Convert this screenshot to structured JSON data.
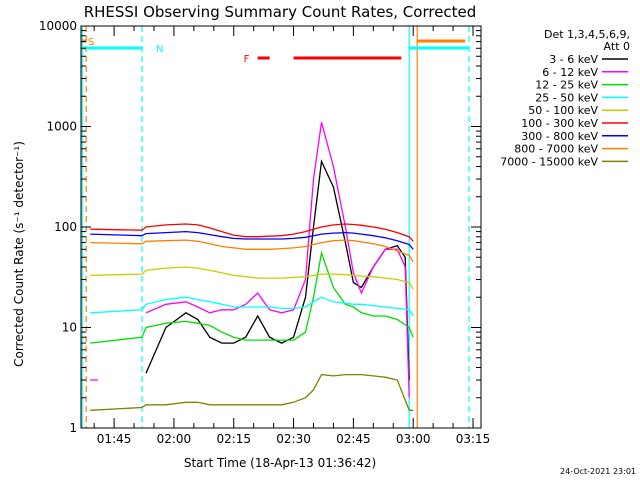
{
  "chart_data": {
    "type": "line",
    "title": "RHESSI Observing Summary Count Rates, Corrected",
    "xlabel": "Start Time (18-Apr-13 01:36:42)",
    "ylabel": "Corrected Count Rate (s⁻¹ detector⁻¹)",
    "y_scale": "log",
    "ylim": [
      1,
      10000
    ],
    "xlim": [
      "01:36:42",
      "03:17:00"
    ],
    "x_tick_labels": [
      "01:45",
      "02:00",
      "02:15",
      "02:30",
      "02:45",
      "03:00",
      "03:15"
    ],
    "y_tick_labels": [
      "1",
      "10",
      "100",
      "1000",
      "10000"
    ],
    "legend": {
      "placement": "top-right",
      "header": [
        "Det 1,3,4,5,6,9,",
        "Att 0"
      ],
      "entries": [
        {
          "label": "3 - 6 keV",
          "color": "#000000"
        },
        {
          "label": "6 - 12 keV",
          "color": "#ff00ff"
        },
        {
          "label": "12 - 25 keV",
          "color": "#00dd00"
        },
        {
          "label": "25 - 50 keV",
          "color": "#00ffff"
        },
        {
          "label": "50 - 100 keV",
          "color": "#cccc00"
        },
        {
          "label": "100 - 300 keV",
          "color": "#ff0000"
        },
        {
          "label": "300 - 800 keV",
          "color": "#0000ff"
        },
        {
          "label": "800 - 7000 keV",
          "color": "#ff7f00"
        },
        {
          "label": "7000 - 15000 keV",
          "color": "#808000"
        }
      ]
    },
    "flags": [
      {
        "letter": "S",
        "color": "#ff7f00",
        "segments": [
          [
            "01:37",
            "01:38"
          ],
          [
            "03:01",
            "03:13"
          ]
        ]
      },
      {
        "letter": "N",
        "color": "#00ffff",
        "segments": [
          [
            "01:37",
            "01:52"
          ],
          [
            "02:59",
            "03:14"
          ]
        ]
      },
      {
        "letter": "F",
        "color": "#ff0000",
        "segments": [
          [
            "02:21",
            "02:24"
          ],
          [
            "02:30",
            "02:57"
          ]
        ]
      }
    ],
    "markers": [
      {
        "color": "#00ffff",
        "style": "solid",
        "time": "01:37"
      },
      {
        "color": "#ff7f00",
        "style": "dashed",
        "time": "01:38"
      },
      {
        "color": "#00ffff",
        "style": "dashed",
        "time": "01:52"
      },
      {
        "color": "#00ffff",
        "style": "solid",
        "time": "02:59"
      },
      {
        "color": "#ff7f00",
        "style": "solid",
        "time": "03:01"
      },
      {
        "color": "#00ffff",
        "style": "dashed",
        "time": "03:14"
      }
    ],
    "series": [
      {
        "name": "3 - 6 keV",
        "color": "#000000",
        "x": [
          "01:39",
          "01:52",
          "01:53",
          "01:58",
          "02:03",
          "02:06",
          "02:09",
          "02:12",
          "02:15",
          "02:18",
          "02:21",
          "02:24",
          "02:27",
          "02:30",
          "02:33",
          "02:35",
          "02:37",
          "02:40",
          "02:43",
          "02:45",
          "02:47",
          "02:50",
          "02:53",
          "02:56",
          "02:58",
          "02:59"
        ],
        "values": [
          null,
          null,
          3.5,
          10,
          14,
          12,
          8,
          7,
          7,
          8,
          13,
          8,
          7,
          8,
          20,
          100,
          450,
          250,
          70,
          28,
          25,
          40,
          60,
          65,
          50,
          3
        ]
      },
      {
        "name": "6 - 12 keV",
        "color": "#ff00ff",
        "x": [
          "01:39",
          "01:41",
          "01:42",
          "01:52",
          "01:53",
          "01:58",
          "02:03",
          "02:06",
          "02:09",
          "02:12",
          "02:15",
          "02:18",
          "02:21",
          "02:24",
          "02:27",
          "02:30",
          "02:33",
          "02:35",
          "02:37",
          "02:40",
          "02:43",
          "02:45",
          "02:47",
          "02:50",
          "02:53",
          "02:56",
          "02:58",
          "02:59"
        ],
        "values": [
          3,
          3,
          null,
          null,
          14,
          17,
          18,
          16,
          14,
          15,
          15,
          17,
          22,
          15,
          14,
          15,
          30,
          300,
          1100,
          400,
          100,
          35,
          22,
          40,
          60,
          60,
          40,
          2
        ]
      },
      {
        "name": "12 - 25 keV",
        "color": "#00dd00",
        "x": [
          "01:39",
          "01:52",
          "01:53",
          "01:58",
          "02:03",
          "02:06",
          "02:09",
          "02:12",
          "02:15",
          "02:18",
          "02:21",
          "02:24",
          "02:27",
          "02:30",
          "02:33",
          "02:35",
          "02:37",
          "02:40",
          "02:43",
          "02:45",
          "02:47",
          "02:50",
          "02:53",
          "02:56",
          "02:59",
          "03:00"
        ],
        "values": [
          7,
          8,
          10,
          11,
          11.5,
          11,
          10.5,
          9,
          8,
          7.5,
          7.5,
          7.5,
          7.5,
          7.5,
          9,
          20,
          55,
          25,
          17,
          16,
          14,
          13,
          13,
          12,
          10,
          8
        ]
      },
      {
        "name": "25 - 50 keV",
        "color": "#00ffff",
        "x": [
          "01:39",
          "01:52",
          "01:53",
          "01:58",
          "02:03",
          "02:06",
          "02:09",
          "02:12",
          "02:15",
          "02:18",
          "02:21",
          "02:24",
          "02:27",
          "02:30",
          "02:33",
          "02:35",
          "02:37",
          "02:40",
          "02:43",
          "02:45",
          "02:47",
          "02:50",
          "02:53",
          "02:56",
          "02:59",
          "03:00"
        ],
        "values": [
          14,
          15,
          17,
          19,
          20,
          19,
          18,
          17,
          16,
          16,
          16,
          16,
          15.5,
          15.5,
          16,
          18,
          20,
          18,
          17.5,
          17,
          17,
          16.5,
          16,
          15.5,
          15,
          13
        ]
      },
      {
        "name": "50 - 100 keV",
        "color": "#cccc00",
        "x": [
          "01:39",
          "01:52",
          "01:53",
          "01:58",
          "02:03",
          "02:06",
          "02:09",
          "02:12",
          "02:15",
          "02:18",
          "02:21",
          "02:24",
          "02:27",
          "02:30",
          "02:33",
          "02:35",
          "02:37",
          "02:40",
          "02:43",
          "02:45",
          "02:47",
          "02:50",
          "02:53",
          "02:56",
          "02:59",
          "03:00"
        ],
        "values": [
          33,
          34,
          37,
          39,
          40,
          39,
          37,
          35,
          33,
          32,
          31,
          31,
          31,
          31.5,
          32,
          33,
          34,
          34,
          33.5,
          33,
          32.5,
          32,
          31,
          30,
          28,
          24
        ]
      },
      {
        "name": "100 - 300 keV",
        "color": "#ff0000",
        "x": [
          "01:39",
          "01:52",
          "01:53",
          "01:58",
          "02:03",
          "02:06",
          "02:09",
          "02:12",
          "02:15",
          "02:18",
          "02:21",
          "02:24",
          "02:27",
          "02:30",
          "02:33",
          "02:35",
          "02:37",
          "02:40",
          "02:43",
          "02:45",
          "02:47",
          "02:50",
          "02:53",
          "02:56",
          "02:59",
          "03:00"
        ],
        "values": [
          95,
          93,
          100,
          105,
          107,
          105,
          98,
          90,
          83,
          80,
          80,
          81,
          82,
          85,
          90,
          95,
          100,
          105,
          107,
          106,
          104,
          100,
          95,
          88,
          80,
          72
        ]
      },
      {
        "name": "300 - 800 keV",
        "color": "#0000ff",
        "x": [
          "01:39",
          "01:52",
          "01:53",
          "01:58",
          "02:03",
          "02:06",
          "02:09",
          "02:12",
          "02:15",
          "02:18",
          "02:21",
          "02:24",
          "02:27",
          "02:30",
          "02:33",
          "02:35",
          "02:37",
          "02:40",
          "02:43",
          "02:45",
          "02:47",
          "02:50",
          "02:53",
          "02:56",
          "02:59",
          "03:00"
        ],
        "values": [
          85,
          82,
          86,
          88,
          90,
          88,
          84,
          80,
          77,
          76,
          76,
          76,
          76,
          77,
          79,
          82,
          85,
          87,
          88,
          87,
          85,
          82,
          78,
          73,
          67,
          60
        ]
      },
      {
        "name": "800 - 7000 keV",
        "color": "#ff7f00",
        "x": [
          "01:39",
          "01:52",
          "01:53",
          "01:58",
          "02:03",
          "02:06",
          "02:09",
          "02:12",
          "02:15",
          "02:18",
          "02:21",
          "02:24",
          "02:27",
          "02:30",
          "02:33",
          "02:35",
          "02:37",
          "02:40",
          "02:43",
          "02:45",
          "02:47",
          "02:50",
          "02:53",
          "02:56",
          "02:59",
          "03:00"
        ],
        "values": [
          70,
          68,
          72,
          73,
          74,
          72,
          68,
          64,
          62,
          60,
          60,
          60,
          61,
          62,
          64,
          67,
          70,
          73,
          74,
          73,
          71,
          68,
          64,
          58,
          52,
          45
        ]
      },
      {
        "name": "7000 - 15000 keV",
        "color": "#808000",
        "x": [
          "01:39",
          "01:52",
          "01:53",
          "01:58",
          "02:03",
          "02:06",
          "02:09",
          "02:12",
          "02:15",
          "02:18",
          "02:21",
          "02:24",
          "02:27",
          "02:30",
          "02:33",
          "02:35",
          "02:37",
          "02:40",
          "02:43",
          "02:45",
          "02:47",
          "02:50",
          "02:53",
          "02:56",
          "02:59",
          "03:00"
        ],
        "values": [
          1.5,
          1.6,
          1.7,
          1.7,
          1.8,
          1.8,
          1.7,
          1.7,
          1.7,
          1.7,
          1.7,
          1.7,
          1.7,
          1.8,
          2,
          2.4,
          3.4,
          3.3,
          3.4,
          3.4,
          3.4,
          3.3,
          3.2,
          3,
          1.5,
          1.5
        ]
      }
    ],
    "footer_stamp": "24-Oct-2021 23:01"
  }
}
